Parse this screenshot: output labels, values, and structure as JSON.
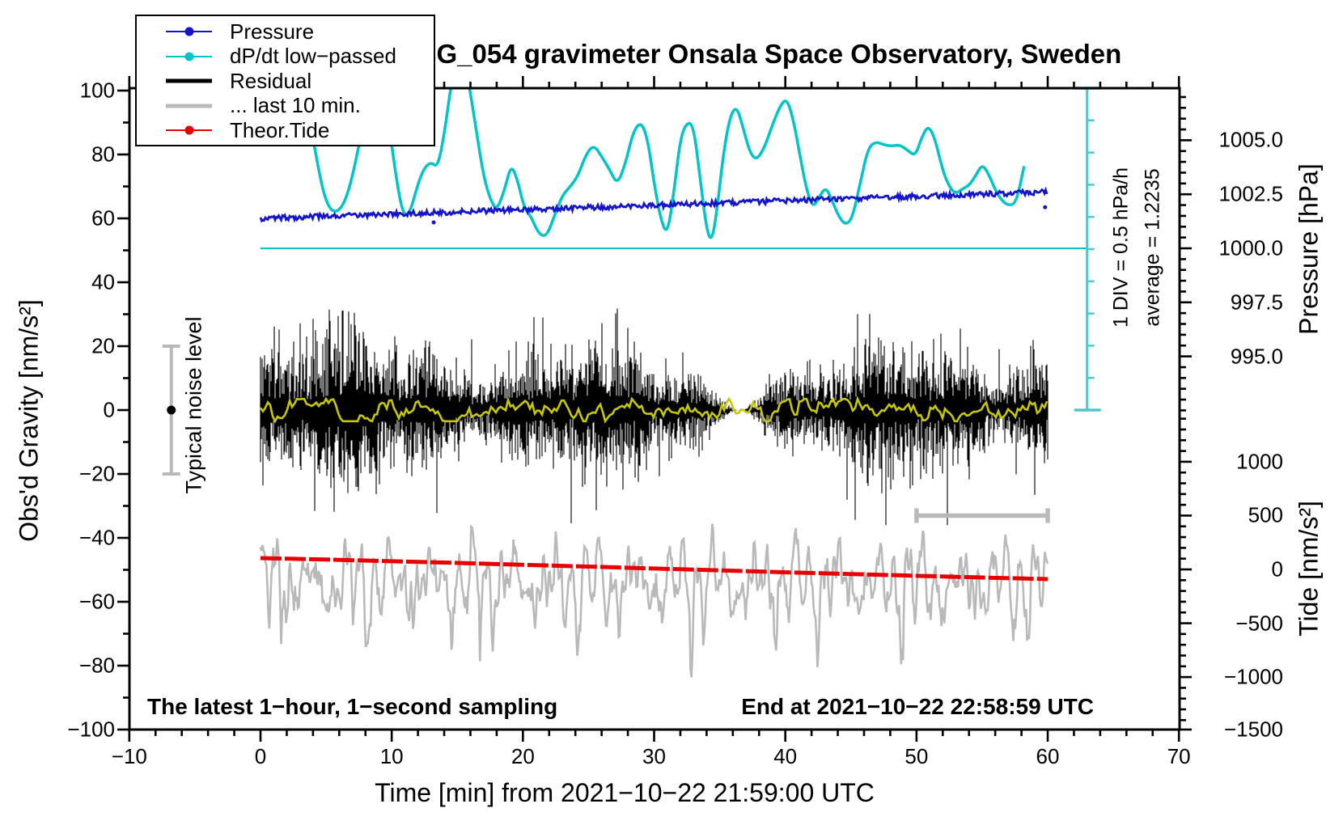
{
  "title": "SCG_054 gravimeter Onsala Space Observatory, Sweden",
  "legend": {
    "items": [
      {
        "label": "Pressure",
        "color": "#1414cd",
        "marker": "line-dot",
        "line_width": 2
      },
      {
        "label": "dP/dt low−passed",
        "color": "#00c5c8",
        "marker": "line-dot",
        "line_width": 2
      },
      {
        "label": "Residual",
        "color": "#000000",
        "marker": "line-thick",
        "line_width": 5
      },
      {
        "label": "... last 10 min.",
        "color": "#b9b9b9",
        "marker": "line-thick",
        "line_width": 5
      },
      {
        "label": "Theor.Tide",
        "color": "#e80000",
        "marker": "line-dot",
        "line_width": 2
      }
    ]
  },
  "axes": {
    "x": {
      "title": "Time [min] from 2021−10−22 21:59:00 UTC",
      "min": -10,
      "max": 70,
      "minor_step": 2,
      "major_ticks": [
        -10,
        0,
        10,
        20,
        30,
        40,
        50,
        60,
        70
      ],
      "labels": [
        "−10",
        "0",
        "10",
        "20",
        "30",
        "40",
        "50",
        "60",
        "70"
      ]
    },
    "gravity": {
      "title": "Obs'd Gravity [nm/s²]",
      "min": -100,
      "max": 100,
      "minor_step": 10,
      "major_ticks": [
        100,
        80,
        60,
        40,
        20,
        0,
        -20,
        -40,
        -60,
        -80,
        -100
      ],
      "labels": [
        "100",
        "80",
        "60",
        "40",
        "20",
        "0",
        "−20",
        "−40",
        "−60",
        "−80",
        "−100"
      ]
    },
    "pressure": {
      "title": "Pressure [hPa]",
      "minor_step": 0.5,
      "major_ticks": [
        1005.0,
        1002.5,
        1000.0,
        997.5,
        995.0
      ],
      "labels": [
        "1005.0",
        "1002.5",
        "1000.0",
        "997.5",
        "995.0"
      ]
    },
    "tide": {
      "title": "Tide [nm/s²]",
      "minor_step": 100,
      "major_ticks": [
        1000,
        500,
        0,
        -500,
        -1000,
        -1500
      ],
      "labels": [
        "1000",
        "500",
        "0",
        "−500",
        "−1000",
        "−1500"
      ]
    }
  },
  "annotations": {
    "noise_bar_label": "Typical noise level",
    "div_label": "1 DIV = 0.5 hPa/h",
    "average_label": "average = 1.2235",
    "bottom_left": "The latest 1−hour, 1−second sampling",
    "bottom_right": "End at 2021−10−22 22:58:59 UTC"
  },
  "chart_data": {
    "type": "line",
    "x_unit": "minutes",
    "x_range": [
      0,
      60
    ],
    "grid": false,
    "legend_position": "top-left",
    "series": [
      {
        "name": "Pressure",
        "axis": "pressure_hPa",
        "color": "#1414cd",
        "shape": "noisy linear trend",
        "start_hPa": 1001.38,
        "end_hPa": 1002.6,
        "rate_hPa_per_h": 1.2235,
        "noise_band_hPa": 0.12,
        "stray_points": [
          [
            13.2,
            -0.45
          ],
          [
            59.8,
            -0.7
          ]
        ]
      },
      {
        "name": "dP/dt low−passed",
        "axis": "hPa_per_h",
        "color": "#00c5c8",
        "zero_line_at_pressure_hPa": 1000.0,
        "div_hPa_per_h": 0.5,
        "points": [
          [
            4,
            1.7
          ],
          [
            4.6,
            1.0
          ],
          [
            5.2,
            0.62
          ],
          [
            5.8,
            0.55
          ],
          [
            6.4,
            0.7
          ],
          [
            7,
            1.1
          ],
          [
            7.6,
            1.7
          ],
          [
            8.2,
            2.15
          ],
          [
            8.8,
            2.42
          ],
          [
            9.3,
            2.4
          ],
          [
            9.8,
            1.9
          ],
          [
            10.4,
            1.0
          ],
          [
            10.9,
            0.5
          ],
          [
            11.4,
            0.55
          ],
          [
            12,
            1.0
          ],
          [
            12.5,
            1.25
          ],
          [
            13,
            1.33
          ],
          [
            13.5,
            1.25
          ],
          [
            14,
            1.75
          ],
          [
            14.5,
            2.5
          ],
          [
            15,
            2.95
          ],
          [
            15.5,
            2.95
          ],
          [
            16,
            2.4
          ],
          [
            16.5,
            1.75
          ],
          [
            17,
            1.12
          ],
          [
            17.5,
            0.76
          ],
          [
            18,
            0.58
          ],
          [
            18.6,
            0.9
          ],
          [
            19.1,
            1.3
          ],
          [
            19.6,
            1.05
          ],
          [
            20.1,
            0.62
          ],
          [
            20.6,
            0.5
          ],
          [
            21.2,
            0.22
          ],
          [
            21.8,
            0.18
          ],
          [
            22.4,
            0.5
          ],
          [
            23,
            0.82
          ],
          [
            23.6,
            0.95
          ],
          [
            24.2,
            1.12
          ],
          [
            24.8,
            1.45
          ],
          [
            25.4,
            1.6
          ],
          [
            26,
            1.42
          ],
          [
            26.6,
            1.22
          ],
          [
            27.2,
            0.98
          ],
          [
            27.8,
            1.3
          ],
          [
            28.4,
            1.8
          ],
          [
            29,
            1.96
          ],
          [
            29.5,
            1.7
          ],
          [
            30,
            1.0
          ],
          [
            30.5,
            0.45
          ],
          [
            31,
            0.2
          ],
          [
            31.5,
            0.85
          ],
          [
            32,
            1.7
          ],
          [
            32.5,
            1.95
          ],
          [
            33,
            1.9
          ],
          [
            33.5,
            1.1
          ],
          [
            34,
            0.28
          ],
          [
            34.4,
            0.1
          ],
          [
            34.8,
            0.6
          ],
          [
            35.3,
            1.5
          ],
          [
            35.8,
            2.05
          ],
          [
            36.3,
            2.2
          ],
          [
            36.8,
            1.85
          ],
          [
            37.3,
            1.48
          ],
          [
            37.8,
            1.36
          ],
          [
            38.4,
            1.55
          ],
          [
            39,
            1.9
          ],
          [
            39.6,
            2.2
          ],
          [
            40.1,
            2.32
          ],
          [
            40.6,
            2.0
          ],
          [
            41.1,
            1.45
          ],
          [
            41.6,
            0.92
          ],
          [
            42.1,
            0.62
          ],
          [
            42.6,
            0.8
          ],
          [
            43.1,
            0.95
          ],
          [
            43.6,
            0.72
          ],
          [
            44.1,
            0.48
          ],
          [
            44.6,
            0.36
          ],
          [
            45.1,
            0.46
          ],
          [
            45.7,
            1.0
          ],
          [
            46.3,
            1.55
          ],
          [
            46.9,
            1.65
          ],
          [
            47.5,
            1.6
          ],
          [
            48.1,
            1.58
          ],
          [
            48.7,
            1.6
          ],
          [
            49.3,
            1.52
          ],
          [
            49.9,
            1.42
          ],
          [
            50.4,
            1.72
          ],
          [
            50.9,
            1.9
          ],
          [
            51.4,
            1.7
          ],
          [
            52,
            1.2
          ],
          [
            52.5,
            0.95
          ],
          [
            53,
            0.84
          ],
          [
            53.5,
            0.92
          ],
          [
            54,
            0.97
          ],
          [
            54.5,
            1.12
          ],
          [
            55,
            1.3
          ],
          [
            55.5,
            1.15
          ],
          [
            56,
            0.9
          ],
          [
            56.5,
            0.74
          ],
          [
            57,
            0.66
          ],
          [
            57.6,
            0.7
          ],
          [
            58.2,
            1.27
          ]
        ]
      },
      {
        "name": "Residual",
        "axis": "gravity_nm_s2",
        "color": "#000000",
        "shape": "1-second high-frequency noise band centered at 0",
        "typical_band_nm_s2": 20,
        "spike_max_nm_s2": 42
      },
      {
        "name": "Residual smoothed",
        "axis": "gravity_nm_s2",
        "color": "#c8c800",
        "shape": "low-passed residual, wiggles about 0 within ±3"
      },
      {
        "name": "Residual last 10 min (stretched to full width)",
        "axis": "tide_nm_s2",
        "color": "#b9b9b9",
        "center_tide": -140,
        "typical_amplitude_tide": 600,
        "trough_extreme_tide": -1150,
        "peak_extreme_tide": 810
      },
      {
        "name": "Theor.Tide",
        "axis": "tide_nm_s2",
        "color": "#e80000",
        "points": [
          [
            0,
            105
          ],
          [
            5,
            92
          ],
          [
            10,
            76
          ],
          [
            15,
            60
          ],
          [
            20,
            43
          ],
          [
            25,
            26
          ],
          [
            30,
            8
          ],
          [
            35,
            -9
          ],
          [
            40,
            -27
          ],
          [
            45,
            -43
          ],
          [
            50,
            -59
          ],
          [
            55,
            -75
          ],
          [
            60,
            -90
          ]
        ]
      }
    ],
    "extras": {
      "noise_errorbar": {
        "t_min": -6.8,
        "center_gravity": 0,
        "half_range_gravity": 20,
        "color": "#b9b9b9",
        "dot_color": "#000000"
      },
      "last10_span_bar": {
        "t_from": 50,
        "t_to": 60,
        "tide_level": 500,
        "color": "#b9b9b9"
      },
      "dpdt_scale_ruler": {
        "t_min": 63,
        "divisions": 10,
        "div_value_hPa_per_h": 0.5,
        "color": "#55c4c8"
      },
      "dpdt_zero_line": {
        "pressure_hPa": 1000.0,
        "t_from": 0,
        "t_to": 63,
        "color": "#00c5c8"
      }
    }
  }
}
